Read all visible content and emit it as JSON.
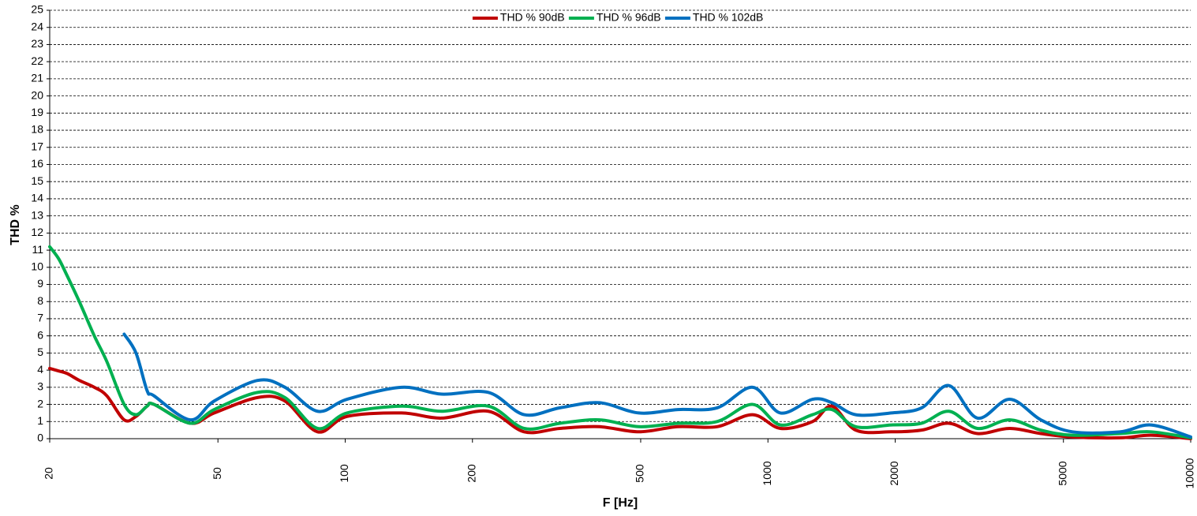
{
  "chart_data": {
    "type": "line",
    "x_label": "F [Hz]",
    "y_label": "THD %",
    "log_x": true,
    "grid": true,
    "legend": "upper center",
    "xlim": [
      20,
      10000
    ],
    "xticks": [
      20,
      50,
      100,
      200,
      500,
      1000,
      2000,
      5000,
      10000
    ],
    "ylim": [
      0,
      25
    ],
    "yticks": [
      0,
      1,
      2,
      3,
      4,
      5,
      6,
      7,
      8,
      9,
      10,
      11,
      12,
      13,
      14,
      15,
      16,
      17,
      18,
      19,
      20,
      21,
      22,
      23,
      24,
      25
    ],
    "x": [
      20,
      21,
      22,
      23.5,
      25.5,
      27.3,
      30,
      32,
      34,
      35.3,
      43,
      49,
      62,
      72,
      86,
      101,
      136,
      169,
      218,
      265,
      322,
      399,
      495,
      612,
      758,
      920,
      1070,
      1275,
      1417,
      1613,
      1958,
      2310,
      2680,
      3130,
      3730,
      4420,
      5250,
      6800,
      8060,
      10000
    ],
    "series": [
      {
        "name": "THD % 90dB",
        "color": "#c00000",
        "values": [
          4.1,
          3.95,
          3.8,
          3.4,
          3.0,
          2.5,
          1.1,
          1.3,
          1.9,
          2.0,
          0.9,
          1.5,
          2.4,
          2.2,
          0.4,
          1.3,
          1.5,
          1.2,
          1.6,
          0.4,
          0.6,
          0.7,
          0.4,
          0.7,
          0.7,
          1.4,
          0.6,
          1.0,
          1.9,
          0.5,
          0.4,
          0.5,
          0.9,
          0.3,
          0.6,
          0.3,
          0.1,
          0.05,
          0.2,
          0
        ]
      },
      {
        "name": "THD % 96dB",
        "color": "#00b050",
        "values": [
          11.2,
          10.5,
          9.5,
          8.0,
          6.0,
          4.5,
          2.0,
          1.4,
          1.9,
          2.0,
          0.9,
          1.7,
          2.7,
          2.4,
          0.6,
          1.5,
          1.9,
          1.6,
          1.9,
          0.6,
          0.9,
          1.1,
          0.7,
          0.9,
          1.0,
          2.0,
          0.8,
          1.4,
          1.7,
          0.7,
          0.8,
          0.9,
          1.6,
          0.6,
          1.1,
          0.5,
          0.2,
          0.3,
          0.4,
          0.05
        ]
      },
      {
        "name": "THD % 102dB",
        "color": "#0070c0",
        "values": [
          null,
          null,
          null,
          null,
          null,
          null,
          6.1,
          5.0,
          2.8,
          2.5,
          1.1,
          2.2,
          3.4,
          3.0,
          1.6,
          2.3,
          3.0,
          2.6,
          2.7,
          1.4,
          1.8,
          2.1,
          1.5,
          1.7,
          1.8,
          3.0,
          1.5,
          2.3,
          2.1,
          1.4,
          1.5,
          1.8,
          3.1,
          1.2,
          2.3,
          1.1,
          0.4,
          0.4,
          0.8,
          0.1
        ]
      }
    ]
  }
}
